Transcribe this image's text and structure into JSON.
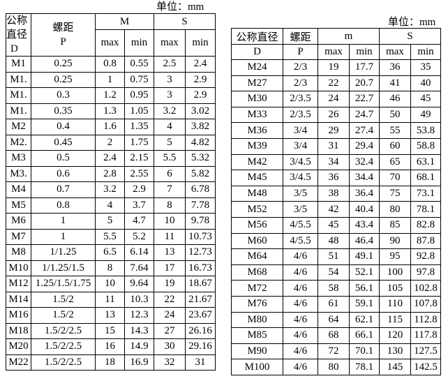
{
  "left": {
    "unit": "单位：mm",
    "headers": {
      "d1": "公称",
      "d2": "直径",
      "d3": "D",
      "p1": "螺距",
      "p2": "P",
      "m": "M",
      "s": "S",
      "max": "max",
      "min": "min"
    },
    "rows": [
      [
        "M1",
        "0.25",
        "0.8",
        "0.55",
        "2.5",
        "2.4"
      ],
      [
        "M1.",
        "0.25",
        "1",
        "0.75",
        "3",
        "2.9"
      ],
      [
        "M1.",
        "0.3",
        "1.2",
        "0.95",
        "3",
        "2.9"
      ],
      [
        "M1.",
        "0.35",
        "1.3",
        "1.05",
        "3.2",
        "3.02"
      ],
      [
        "M2",
        "0.4",
        "1.6",
        "1.35",
        "4",
        "3.82"
      ],
      [
        "M2.",
        "0.45",
        "2",
        "1.75",
        "5",
        "4.82"
      ],
      [
        "M3",
        "0.5",
        "2.4",
        "2.15",
        "5.5",
        "5.32"
      ],
      [
        "M3.",
        "0.6",
        "2.8",
        "2.55",
        "6",
        "5.82"
      ],
      [
        "M4",
        "0.7",
        "3.2",
        "2.9",
        "7",
        "6.78"
      ],
      [
        "M5",
        "0.8",
        "4",
        "3.7",
        "8",
        "7.78"
      ],
      [
        "M6",
        "1",
        "5",
        "4.7",
        "10",
        "9.78"
      ],
      [
        "M7",
        "1",
        "5.5",
        "5.2",
        "11",
        "10.73"
      ],
      [
        "M8",
        "1/1.25",
        "6.5",
        "6.14",
        "13",
        "12.73"
      ],
      [
        "M10",
        "1/1.25/1.5",
        "8",
        "7.64",
        "17",
        "16.73"
      ],
      [
        "M12",
        "1.25/1.5/1.75",
        "10",
        "9.64",
        "19",
        "18.67"
      ],
      [
        "M14",
        "1.5/2",
        "11",
        "10.3",
        "22",
        "21.67"
      ],
      [
        "M16",
        "1.5/2",
        "13",
        "12.3",
        "24",
        "23.67"
      ],
      [
        "M18",
        "1.5/2/2.5",
        "15",
        "14.3",
        "27",
        "26.16"
      ],
      [
        "M20",
        "1.5/2/2.5",
        "16",
        "14.9",
        "30",
        "29.16"
      ],
      [
        "M22",
        "1.5/2/2.5",
        "18",
        "16.9",
        "32",
        "31"
      ]
    ]
  },
  "right": {
    "unit": "单位：mm",
    "headers": {
      "d1": "公称直径",
      "d2": "D",
      "p1": "螺距",
      "p2": "P",
      "m": "m",
      "s": "S",
      "max": "max",
      "min": "min"
    },
    "rows": [
      [
        "M24",
        "2/3",
        "19",
        "17.7",
        "36",
        "35"
      ],
      [
        "M27",
        "2/3",
        "22",
        "20.7",
        "41",
        "40"
      ],
      [
        "M30",
        "2/3.5",
        "24",
        "22.7",
        "46",
        "45"
      ],
      [
        "M33",
        "2/3.5",
        "26",
        "24.7",
        "50",
        "49"
      ],
      [
        "M36",
        "3/4",
        "29",
        "27.4",
        "55",
        "53.8"
      ],
      [
        "M39",
        "3/4",
        "31",
        "29.4",
        "60",
        "58.8"
      ],
      [
        "M42",
        "3/4.5",
        "34",
        "32.4",
        "65",
        "63.1"
      ],
      [
        "M45",
        "3/4.5",
        "36",
        "34.4",
        "70",
        "68.1"
      ],
      [
        "M48",
        "3/5",
        "38",
        "36.4",
        "75",
        "73.1"
      ],
      [
        "M52",
        "3/5",
        "42",
        "40.4",
        "80",
        "78.1"
      ],
      [
        "M56",
        "4/5.5",
        "45",
        "43.4",
        "85",
        "82.8"
      ],
      [
        "M60",
        "4/5.5",
        "48",
        "46.4",
        "90",
        "87.8"
      ],
      [
        "M64",
        "4/6",
        "51",
        "49.1",
        "95",
        "92.8"
      ],
      [
        "M68",
        "4/6",
        "54",
        "52.1",
        "100",
        "97.8"
      ],
      [
        "M72",
        "4/6",
        "58",
        "56.1",
        "105",
        "102.8"
      ],
      [
        "M76",
        "4/6",
        "61",
        "59.1",
        "110",
        "107.8"
      ],
      [
        "M80",
        "4/6",
        "64",
        "62.1",
        "115",
        "112.8"
      ],
      [
        "M85",
        "4/6",
        "68",
        "66.1",
        "120",
        "117.8"
      ],
      [
        "M90",
        "4/6",
        "72",
        "70.1",
        "130",
        "127.5"
      ],
      [
        "M100",
        "4/6",
        "80",
        "78.1",
        "145",
        "142.5"
      ]
    ]
  }
}
